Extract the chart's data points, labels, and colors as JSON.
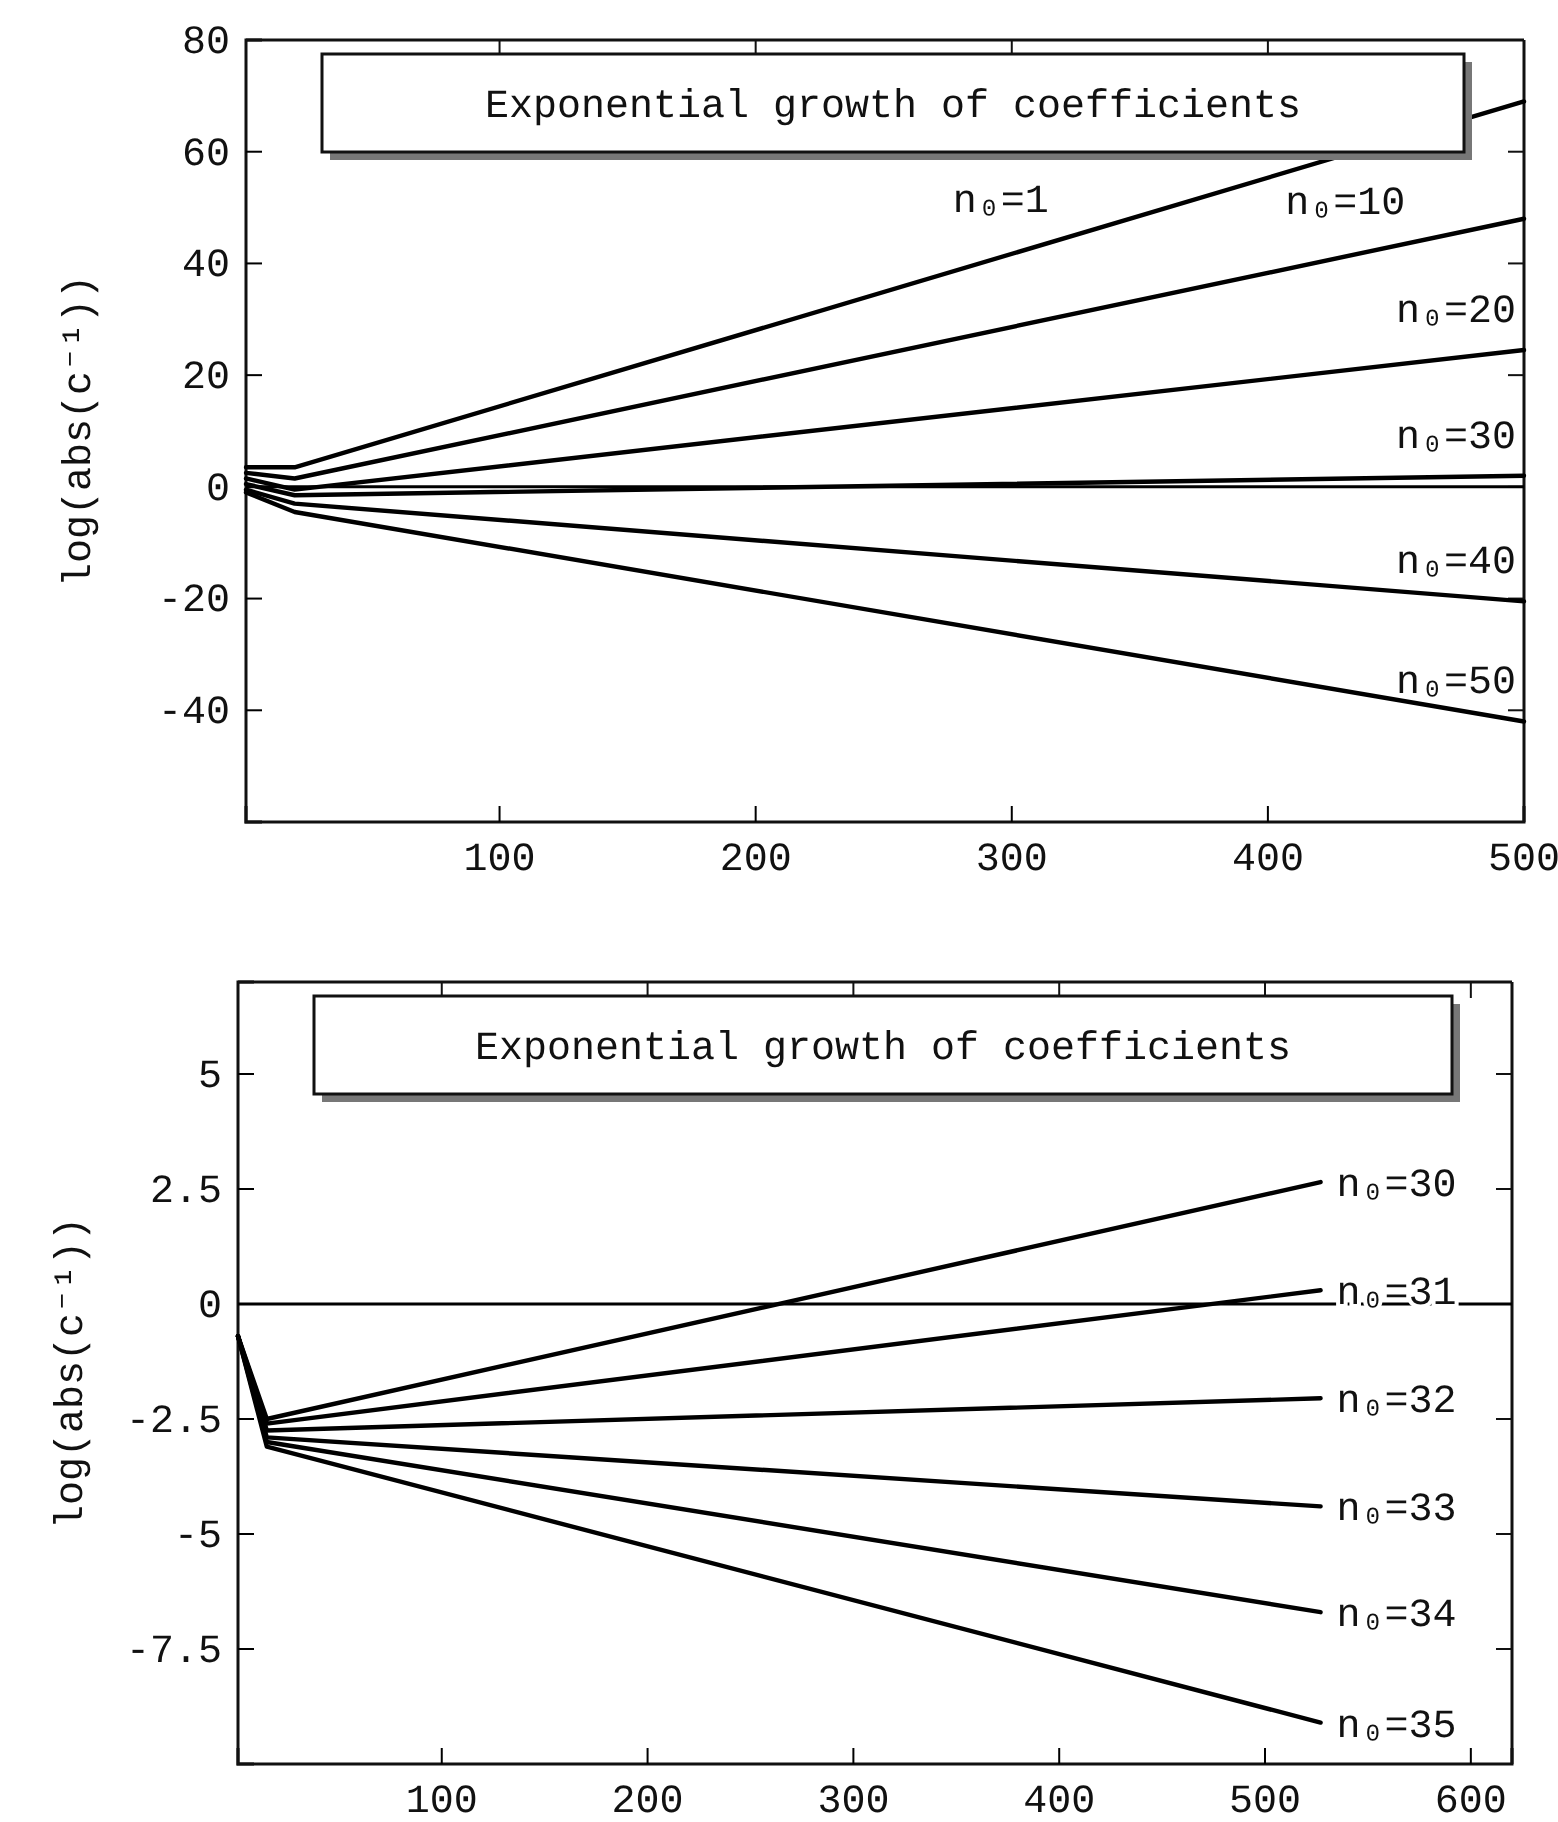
{
  "chart_data": [
    {
      "type": "line",
      "title": "Exponential growth of coefficients",
      "ylabel": "log(abs(c⁻¹))",
      "x": [
        1,
        20,
        500
      ],
      "xlim": [
        1,
        500
      ],
      "ylim": [
        -60,
        80
      ],
      "xticks": [
        100,
        200,
        300,
        400,
        500
      ],
      "yticks": [
        -40,
        -20,
        0,
        20,
        40,
        60,
        80
      ],
      "legend": false,
      "grid": false,
      "marker": "none",
      "line_style": "solid",
      "ref_lines": [
        {
          "axis": "y",
          "value": 0,
          "color": "#000000"
        }
      ],
      "series": [
        {
          "name": "n₀=1",
          "color": "#000000",
          "values": [
            3.5,
            3.5,
            69
          ]
        },
        {
          "name": "n₀=10",
          "color": "#000000",
          "values": [
            2.5,
            1.5,
            48
          ]
        },
        {
          "name": "n₀=20",
          "color": "#000000",
          "values": [
            1.5,
            -0.5,
            24.5
          ]
        },
        {
          "name": "n₀=30",
          "color": "#000000",
          "values": [
            0.5,
            -1.5,
            2
          ]
        },
        {
          "name": "n₀=40",
          "color": "#000000",
          "values": [
            -0.5,
            -3,
            -20.5
          ]
        },
        {
          "name": "n₀=50",
          "color": "#000000",
          "values": [
            -1,
            -4.5,
            -42
          ]
        }
      ]
    },
    {
      "type": "line",
      "title": "Exponential growth of coefficients",
      "ylabel": "log(abs(c⁻¹))",
      "x": [
        1,
        15,
        527
      ],
      "xlim": [
        1,
        620
      ],
      "ylim": [
        -10,
        7
      ],
      "xticks": [
        100,
        200,
        300,
        400,
        500,
        600
      ],
      "yticks": [
        -7.5,
        -5,
        -2.5,
        0,
        2.5,
        5
      ],
      "legend": false,
      "grid": false,
      "marker": "none",
      "line_style": "solid",
      "ref_lines": [
        {
          "axis": "y",
          "value": 0,
          "color": "#000000"
        }
      ],
      "series": [
        {
          "name": "n₀=30",
          "color": "#000000",
          "values": [
            -0.7,
            -2.5,
            2.65
          ]
        },
        {
          "name": "n₀=31",
          "color": "#000000",
          "values": [
            -0.7,
            -2.6,
            0.3
          ]
        },
        {
          "name": "n₀=32",
          "color": "#000000",
          "values": [
            -0.7,
            -2.75,
            -2.05
          ]
        },
        {
          "name": "n₀=33",
          "color": "#000000",
          "values": [
            -0.7,
            -2.9,
            -4.4
          ]
        },
        {
          "name": "n₀=34",
          "color": "#000000",
          "values": [
            -0.7,
            -3,
            -6.7
          ]
        },
        {
          "name": "n₀=35",
          "color": "#000000",
          "values": [
            -0.7,
            -3.1,
            -9.1
          ]
        }
      ]
    }
  ]
}
